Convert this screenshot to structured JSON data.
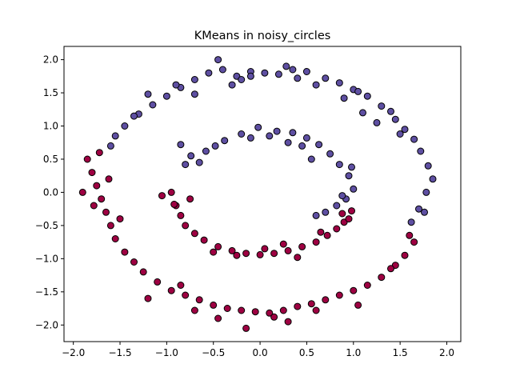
{
  "chart_data": {
    "type": "scatter",
    "title": "KMeans in noisy_circles",
    "xlabel": "",
    "ylabel": "",
    "xlim": [
      -2.1,
      2.15
    ],
    "ylim": [
      -2.25,
      2.2
    ],
    "xticks": [
      -2.0,
      -1.5,
      -1.0,
      -0.5,
      0.0,
      0.5,
      1.0,
      1.5,
      2.0
    ],
    "xtick_labels": [
      "−2.0",
      "−1.5",
      "−1.0",
      "−0.5",
      "0.0",
      "0.5",
      "1.0",
      "1.5",
      "2.0"
    ],
    "yticks": [
      -2.0,
      -1.5,
      -1.0,
      -0.5,
      0.0,
      0.5,
      1.0,
      1.5,
      2.0
    ],
    "ytick_labels": [
      "−2.0",
      "−1.5",
      "−1.0",
      "−0.5",
      "0.0",
      "0.5",
      "1.0",
      "1.5",
      "2.0"
    ],
    "grid": false,
    "legend": "none",
    "marker_edge_color": "#000000",
    "series": [
      {
        "color": "#5e4fa2",
        "x": [
          -0.55,
          -0.4,
          -0.25,
          -0.1,
          0.05,
          0.2,
          0.35,
          0.5,
          0.7,
          0.85,
          1.0,
          1.15,
          1.3,
          1.45,
          1.55,
          1.65,
          1.72,
          1.8,
          1.85,
          1.78,
          1.7,
          1.62,
          -0.7,
          -0.85,
          -1.0,
          -1.15,
          -1.3,
          -1.45,
          -1.55,
          -1.6,
          -0.45,
          -0.1,
          0.28,
          0.6,
          0.9,
          1.05,
          1.1,
          1.25,
          1.5,
          1.76,
          -0.9,
          -1.2,
          -1.35,
          -0.3,
          -0.7,
          -0.2,
          0.4,
          1.4,
          -0.48,
          -0.38,
          -0.2,
          -0.02,
          0.18,
          0.35,
          0.5,
          0.63,
          0.75,
          0.85,
          0.95,
          1.0,
          0.92,
          0.82,
          0.7,
          0.6,
          -0.58,
          -0.74,
          -0.85,
          -0.1,
          0.3,
          0.98,
          -0.65,
          0.1,
          0.55,
          -0.8,
          0.88,
          0.45
        ],
        "y": [
          1.8,
          1.85,
          1.75,
          1.82,
          1.8,
          1.78,
          1.85,
          1.82,
          1.72,
          1.65,
          1.55,
          1.45,
          1.3,
          1.1,
          0.95,
          0.8,
          0.62,
          0.4,
          0.2,
          0.0,
          -0.25,
          -0.45,
          1.7,
          1.58,
          1.45,
          1.32,
          1.18,
          1.0,
          0.85,
          0.7,
          2.0,
          1.75,
          1.9,
          1.62,
          1.42,
          1.52,
          1.2,
          1.05,
          0.88,
          -0.3,
          1.62,
          1.48,
          1.15,
          1.62,
          1.48,
          1.7,
          1.72,
          1.22,
          0.7,
          0.78,
          0.88,
          0.98,
          0.92,
          0.9,
          0.82,
          0.72,
          0.58,
          0.42,
          0.25,
          0.05,
          -0.1,
          -0.2,
          -0.3,
          -0.35,
          0.62,
          0.55,
          0.72,
          0.82,
          0.75,
          0.38,
          0.45,
          0.85,
          0.5,
          0.42,
          -0.05,
          0.7
        ]
      },
      {
        "color": "#9e0142",
        "x": [
          -1.85,
          -1.8,
          -1.75,
          -1.7,
          -1.65,
          -1.6,
          -1.55,
          -1.45,
          -1.35,
          -1.25,
          -1.1,
          -0.95,
          -0.8,
          -0.65,
          -0.5,
          -0.35,
          -0.2,
          -0.05,
          0.1,
          0.25,
          0.4,
          0.55,
          0.7,
          0.85,
          1.0,
          1.15,
          1.3,
          1.45,
          1.55,
          1.65,
          -1.9,
          -1.72,
          -1.5,
          -1.2,
          -0.85,
          -0.45,
          -0.15,
          0.3,
          0.6,
          1.05,
          1.4,
          1.6,
          -1.78,
          -1.62,
          -0.7,
          0.15,
          -1.05,
          -0.9,
          -0.85,
          -0.8,
          -0.7,
          -0.6,
          -0.45,
          -0.3,
          -0.15,
          0.0,
          0.15,
          0.3,
          0.45,
          0.6,
          0.72,
          0.82,
          0.9,
          0.95,
          0.98,
          -0.25,
          0.4,
          -0.5,
          -0.95,
          0.05,
          0.65,
          -0.75,
          0.88,
          0.25,
          -0.92
        ],
        "y": [
          0.5,
          0.3,
          0.1,
          -0.1,
          -0.3,
          -0.5,
          -0.7,
          -0.9,
          -1.05,
          -1.2,
          -1.35,
          -1.48,
          -1.55,
          -1.62,
          -1.7,
          -1.75,
          -1.78,
          -1.8,
          -1.82,
          -1.78,
          -1.72,
          -1.68,
          -1.62,
          -1.55,
          -1.48,
          -1.4,
          -1.28,
          -1.1,
          -0.95,
          -0.75,
          0.0,
          0.6,
          -0.4,
          -1.6,
          -1.4,
          -1.9,
          -2.05,
          -1.95,
          -1.78,
          -1.7,
          -1.15,
          -0.65,
          -0.2,
          0.2,
          -1.78,
          -1.88,
          -0.05,
          -0.2,
          -0.35,
          -0.5,
          -0.62,
          -0.72,
          -0.82,
          -0.88,
          -0.92,
          -0.94,
          -0.92,
          -0.88,
          -0.82,
          -0.75,
          -0.65,
          -0.55,
          -0.45,
          -0.4,
          -0.28,
          -0.95,
          -0.98,
          -0.9,
          0.0,
          -0.85,
          -0.6,
          -0.1,
          -0.32,
          -0.78,
          -0.18
        ]
      }
    ]
  }
}
